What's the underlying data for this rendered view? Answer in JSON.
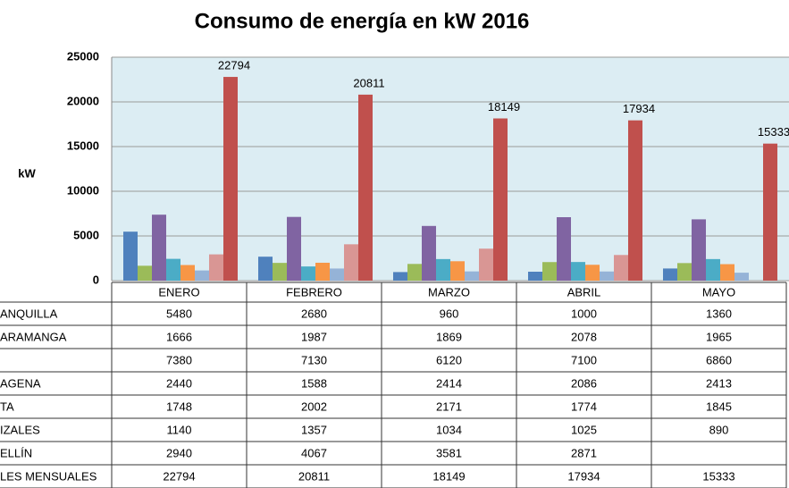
{
  "chart_data": {
    "type": "bar",
    "title": "Consumo de energía en kW 2016",
    "y_label": "kW",
    "categories": [
      "ENERO",
      "FEBRERO",
      "MARZO",
      "ABRIL",
      "MAYO"
    ],
    "ylim": [
      0,
      25000
    ],
    "yticks": [
      0,
      5000,
      10000,
      15000,
      20000,
      25000
    ],
    "grid": true,
    "series": [
      {
        "name": "ANQUILLA",
        "color": "#4f81bd",
        "values": [
          5480,
          2680,
          960,
          1000,
          1360
        ]
      },
      {
        "name": "ARAMANGA",
        "color": "#9bbb59",
        "values": [
          1666,
          1987,
          1869,
          2078,
          1965
        ]
      },
      {
        "name": null,
        "color": "#8064a2",
        "values": [
          7380,
          7130,
          6120,
          7100,
          6860
        ]
      },
      {
        "name": "AGENA",
        "color": "#4bacc6",
        "values": [
          2440,
          1588,
          2414,
          2086,
          2413
        ]
      },
      {
        "name": "TA",
        "color": "#f79646",
        "values": [
          1748,
          2002,
          2171,
          1774,
          1845
        ]
      },
      {
        "name": "IZALES",
        "color": "#95b3d7",
        "values": [
          1140,
          1357,
          1034,
          1025,
          890
        ]
      },
      {
        "name": "ELLÍN",
        "color": "#d99694",
        "values": [
          2940,
          4067,
          3581,
          2871,
          null
        ]
      },
      {
        "name": "LES MENSUALES",
        "color": "#c0504d",
        "values": [
          22794,
          20811,
          18149,
          17934,
          15333
        ],
        "data_labels": true
      }
    ]
  }
}
